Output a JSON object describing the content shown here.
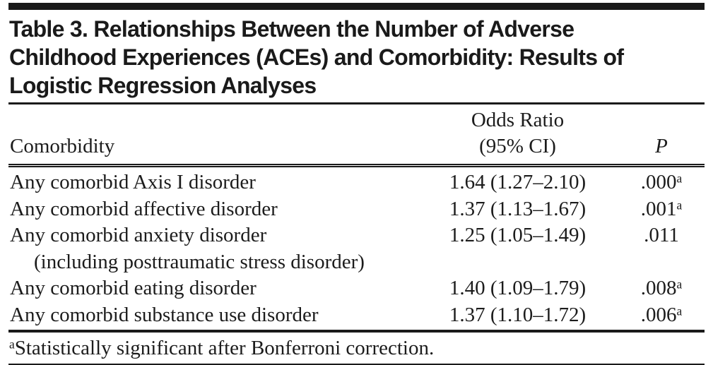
{
  "table": {
    "title_lines": [
      "Table 3. Relationships Between the Number of Adverse",
      "Childhood Experiences (ACEs) and Comorbidity: Results of",
      "Logistic Regression Analyses"
    ],
    "columns": {
      "comorbidity": "Comorbidity",
      "or_line1": "Odds Ratio",
      "or_line2": "(95% CI)",
      "p": "P"
    },
    "rows": [
      {
        "label": "Any comorbid Axis I disorder",
        "label2": "",
        "or": "1.64 (1.27–2.10)",
        "p": ".000",
        "p_sup": "a"
      },
      {
        "label": "Any comorbid affective disorder",
        "label2": "",
        "or": "1.37 (1.13–1.67)",
        "p": ".001",
        "p_sup": "a"
      },
      {
        "label": "Any comorbid anxiety disorder",
        "label2": "(including posttraumatic stress disorder)",
        "or": "1.25 (1.05–1.49)",
        "p": ".011",
        "p_sup": ""
      },
      {
        "label": "Any comorbid eating disorder",
        "label2": "",
        "or": "1.40 (1.09–1.79)",
        "p": ".008",
        "p_sup": "a"
      },
      {
        "label": "Any comorbid substance use disorder",
        "label2": "",
        "or": "1.37 (1.10–1.72)",
        "p": ".006",
        "p_sup": "a"
      }
    ],
    "footnote": {
      "sup": "a",
      "text": "Statistically significant after Bonferroni correction."
    },
    "colors": {
      "ink": "#1a1a1a",
      "background": "#ffffff"
    }
  }
}
